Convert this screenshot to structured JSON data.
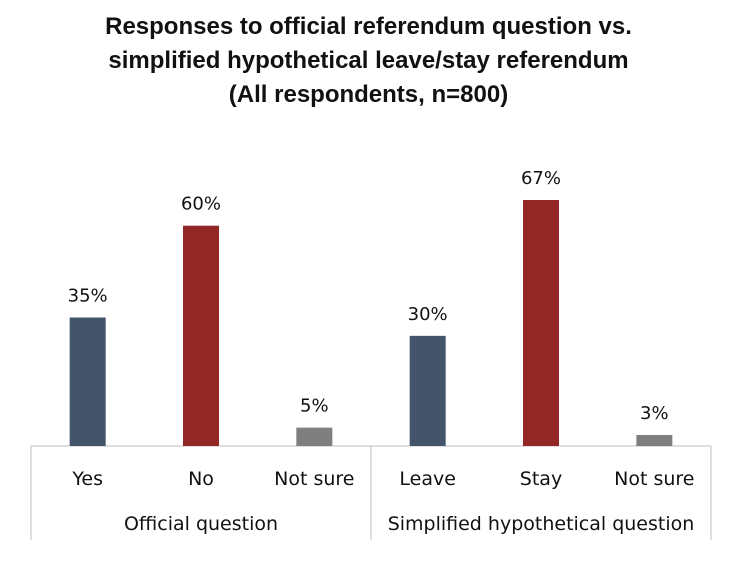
{
  "chart_data": {
    "type": "bar",
    "title_lines": [
      "Responses to official referendum question vs.",
      "simplified hypothetical leave/stay referendum",
      "(All respondents, n=800)"
    ],
    "groups": [
      {
        "name": "Official question",
        "categories": [
          "Yes",
          "No",
          "Not sure"
        ],
        "values": [
          35,
          60,
          5
        ],
        "labels": [
          "35%",
          "60%",
          "5%"
        ],
        "colors": [
          "#44546a",
          "#922725",
          "#7f7f7f"
        ]
      },
      {
        "name": "Simplified hypothetical question",
        "categories": [
          "Leave",
          "Stay",
          "Not sure"
        ],
        "values": [
          30,
          67,
          3
        ],
        "labels": [
          "30%",
          "67%",
          "3%"
        ],
        "colors": [
          "#44546a",
          "#922725",
          "#7f7f7f"
        ]
      }
    ],
    "ylim": [
      0,
      100
    ],
    "grid": false,
    "unit": "%"
  }
}
